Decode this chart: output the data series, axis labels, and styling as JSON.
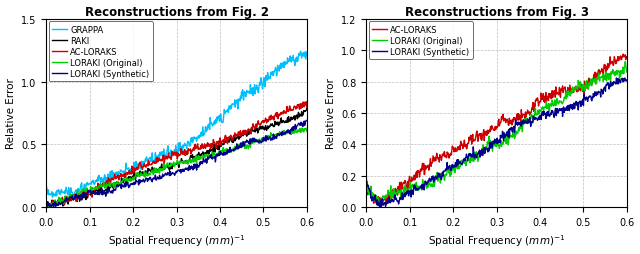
{
  "fig2_title": "Reconstructions from Fig. 2",
  "fig3_title": "Reconstructions from Fig. 3",
  "xlabel": "Spatial Frequency $(mm)^{-1}$",
  "ylabel": "Relative Error",
  "fig2_ylim": [
    0,
    1.5
  ],
  "fig3_ylim": [
    0,
    1.2
  ],
  "fig2_yticks": [
    0,
    0.5,
    1.0,
    1.5
  ],
  "fig3_yticks": [
    0,
    0.2,
    0.4,
    0.6,
    0.8,
    1.0,
    1.2
  ],
  "xlim": [
    0,
    0.6
  ],
  "xticks": [
    0,
    0.1,
    0.2,
    0.3,
    0.4,
    0.5,
    0.6
  ],
  "colors": {
    "grappa": "#00BFFF",
    "raki": "#000000",
    "ac_loraks": "#CC0000",
    "loraki_orig": "#00CC00",
    "loraki_syn": "#00008B"
  },
  "linewidth": 1.0
}
